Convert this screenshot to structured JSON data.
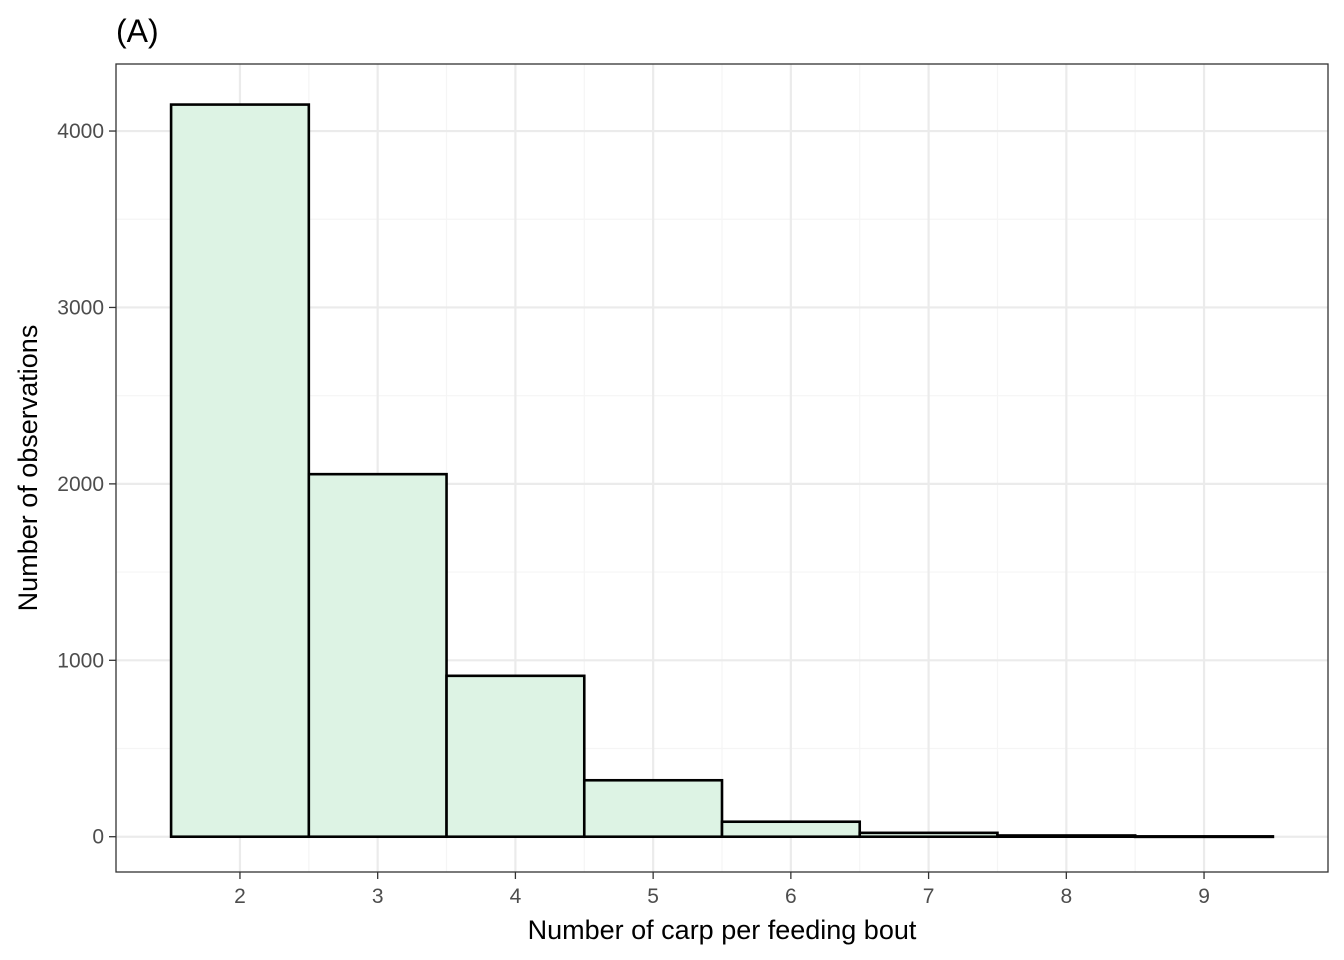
{
  "chart_data": {
    "type": "bar",
    "title": "(A)",
    "xlabel": "Number of carp per feeding bout",
    "ylabel": "Number of observations",
    "categories": [
      2,
      3,
      4,
      5,
      6,
      7,
      8,
      9
    ],
    "values": [
      4150,
      2055,
      912,
      320,
      85,
      22,
      7,
      2
    ],
    "xlim": [
      1.1,
      9.9
    ],
    "ylim": [
      -200,
      4380
    ],
    "x_ticks": [
      2,
      3,
      4,
      5,
      6,
      7,
      8,
      9
    ],
    "y_ticks": [
      0,
      1000,
      2000,
      3000,
      4000
    ],
    "x_tick_labels": [
      "2",
      "3",
      "4",
      "5",
      "6",
      "7",
      "8",
      "9"
    ],
    "y_tick_labels": [
      "0",
      "1000",
      "2000",
      "3000",
      "4000"
    ],
    "bar_width": 1,
    "grid": true,
    "colors": {
      "bar_fill": "#ddf3e4",
      "bar_stroke": "#000000",
      "grid_major": "#ebebeb",
      "grid_minor": "#f5f5f5",
      "panel_border": "#333333",
      "tick_text": "#4d4d4d"
    }
  }
}
